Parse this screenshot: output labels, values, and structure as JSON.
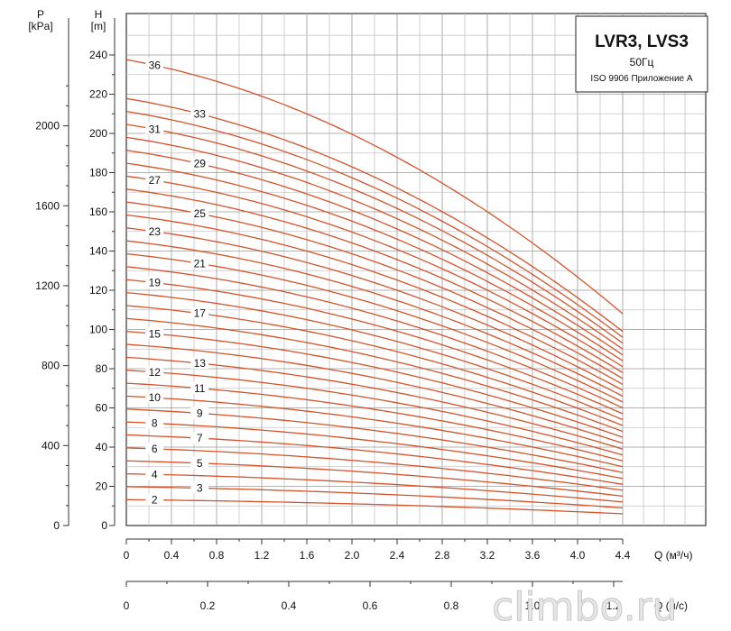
{
  "chart_data": {
    "type": "line",
    "title": "LVR3, LVS3",
    "subtitle": "50Гц",
    "note": "ISO 9906 Приложение A",
    "x_label": "Q (м³/ч)",
    "x2_label": "Q (л/с)",
    "y_label_h": "H\n[m]",
    "y_label_p": "P\n[kPa]",
    "xlim": [
      0,
      4.4
    ],
    "ylim": [
      0,
      240
    ],
    "plim": [
      0,
      2000
    ],
    "x_ticks": [
      "0",
      "0.4",
      "0.8",
      "1.2",
      "1.6",
      "2.0",
      "2.4",
      "2.8",
      "3.2",
      "3.6",
      "4.0",
      "4.4"
    ],
    "x2_ticks": [
      "0",
      "0.2",
      "0.4",
      "0.6",
      "0.8",
      "1.0",
      "1.2"
    ],
    "y_ticks": [
      "0",
      "20",
      "40",
      "60",
      "80",
      "100",
      "120",
      "140",
      "160",
      "180",
      "200",
      "220",
      "240"
    ],
    "p_ticks": [
      "0",
      "400",
      "800",
      "1200",
      "1600",
      "2000"
    ],
    "grid": true,
    "curve_color": "#d4532a",
    "curves": [
      {
        "stages": 2,
        "label": "2",
        "head_0": 13.2,
        "head_end": 6.0
      },
      {
        "stages": 3,
        "label": "3",
        "head_0": 19.8,
        "head_end": 9.0
      },
      {
        "stages": 4,
        "label": "4",
        "head_0": 26.4,
        "head_end": 12.0
      },
      {
        "stages": 5,
        "label": "5",
        "head_0": 33.0,
        "head_end": 15.0
      },
      {
        "stages": 6,
        "label": "6",
        "head_0": 39.6,
        "head_end": 18.0
      },
      {
        "stages": 7,
        "label": "7",
        "head_0": 46.2,
        "head_end": 21.0
      },
      {
        "stages": 8,
        "label": "8",
        "head_0": 52.8,
        "head_end": 24.0
      },
      {
        "stages": 9,
        "label": "9",
        "head_0": 59.4,
        "head_end": 27.0
      },
      {
        "stages": 10,
        "label": "10",
        "head_0": 66.0,
        "head_end": 30.0
      },
      {
        "stages": 11,
        "label": "11",
        "head_0": 72.6,
        "head_end": 33.0
      },
      {
        "stages": 12,
        "label": "12",
        "head_0": 79.2,
        "head_end": 36.0
      },
      {
        "stages": 13,
        "label": "13",
        "head_0": 85.8,
        "head_end": 39.0
      },
      {
        "stages": 15,
        "label": "15",
        "head_0": 99.0,
        "head_end": 45.0
      },
      {
        "stages": 17,
        "label": "17",
        "head_0": 112.2,
        "head_end": 51.0
      },
      {
        "stages": 19,
        "label": "19",
        "head_0": 125.4,
        "head_end": 57.0
      },
      {
        "stages": 21,
        "label": "21",
        "head_0": 138.6,
        "head_end": 63.0
      },
      {
        "stages": 23,
        "label": "23",
        "head_0": 151.8,
        "head_end": 69.0
      },
      {
        "stages": 25,
        "label": "25",
        "head_0": 165.0,
        "head_end": 75.0
      },
      {
        "stages": 27,
        "label": "27",
        "head_0": 178.2,
        "head_end": 81.0
      },
      {
        "stages": 29,
        "label": "29",
        "head_0": 191.4,
        "head_end": 87.0
      },
      {
        "stages": 31,
        "label": "31",
        "head_0": 204.6,
        "head_end": 93.0
      },
      {
        "stages": 33,
        "label": "33",
        "head_0": 217.8,
        "head_end": 99.0
      },
      {
        "stages": 36,
        "label": "36",
        "head_0": 237.6,
        "head_end": 108.0
      }
    ],
    "unlabeled_curves": [
      {
        "head_0": 92.4,
        "head_end": 42.0
      },
      {
        "head_0": 105.6,
        "head_end": 48.0
      },
      {
        "head_0": 118.8,
        "head_end": 54.0
      },
      {
        "head_0": 132.0,
        "head_end": 60.0
      },
      {
        "head_0": 145.2,
        "head_end": 66.0
      },
      {
        "head_0": 158.4,
        "head_end": 72.0
      },
      {
        "head_0": 171.6,
        "head_end": 78.0
      },
      {
        "head_0": 184.8,
        "head_end": 84.0
      },
      {
        "head_0": 198.0,
        "head_end": 90.0
      },
      {
        "head_0": 211.2,
        "head_end": 96.0
      }
    ]
  },
  "watermark": "climbo.ru"
}
